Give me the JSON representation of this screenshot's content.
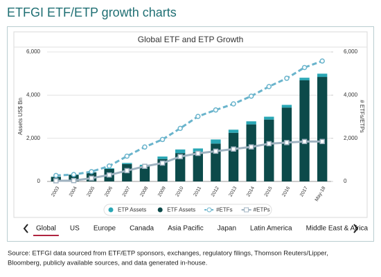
{
  "header": {
    "title": "ETFGI ETF/ETP growth charts"
  },
  "chart_data": {
    "type": "bar",
    "title": "Global ETF and ETP Growth",
    "y_label": "Assets US$ Bn",
    "y2_label": "# ETFs/ETPs",
    "categories": [
      "2003",
      "2004",
      "2005",
      "2006",
      "2007",
      "2008",
      "2009",
      "2010",
      "2011",
      "2012",
      "2013",
      "2014",
      "2015",
      "2016",
      "2017",
      "May-18"
    ],
    "series": [
      {
        "name": "ETP Assets",
        "type": "bar",
        "color": "#2aa7b5",
        "values": [
          6,
          9,
          9,
          32,
          50,
          57,
          117,
          168,
          173,
          190,
          144,
          142,
          133,
          124,
          117,
          150
        ]
      },
      {
        "name": "ETF Assets",
        "type": "bar",
        "color": "#0c4a4a",
        "values": [
          212,
          310,
          417,
          580,
          807,
          716,
          1037,
          1313,
          1355,
          1754,
          2254,
          2643,
          2866,
          3423,
          4687,
          4843
        ]
      },
      {
        "name": "#ETFs",
        "type": "line",
        "axis": "y2",
        "color": "#6ab4cc",
        "dashed": true,
        "marker": "circle",
        "values": [
          276,
          319,
          453,
          714,
          1171,
          1595,
          1944,
          2459,
          3012,
          3311,
          3594,
          3952,
          4396,
          4779,
          5278,
          5580
        ]
      },
      {
        "name": "#ETPs",
        "type": "line",
        "axis": "y2",
        "color": "#9fb2c0",
        "dashed": false,
        "marker": "square",
        "values": [
          30,
          40,
          150,
          300,
          500,
          700,
          850,
          1150,
          1300,
          1400,
          1500,
          1600,
          1750,
          1800,
          1850,
          1850
        ]
      }
    ],
    "ylim": [
      0,
      6000
    ],
    "yticks": [
      0,
      {
        "value": 2000,
        "label": "2,000"
      },
      {
        "value": 4000,
        "label": "4,000"
      },
      {
        "value": 6000,
        "label": "6,000"
      }
    ],
    "y2lim": [
      0,
      6000
    ],
    "y2ticks": [
      0,
      {
        "value": 2000,
        "label": "2,000"
      },
      {
        "value": 4000,
        "label": "4,000"
      },
      {
        "value": 6000,
        "label": "6,000"
      }
    ],
    "grid": true,
    "legend": "bottom"
  },
  "tabs": [
    "Global",
    "US",
    "Europe",
    "Canada",
    "Asia Pacific",
    "Japan",
    "Latin America",
    "Middle East & Africa"
  ],
  "active_tab": 0,
  "source": [
    "Source: ETFGI data sourced from ETF/ETP sponsors, exchanges, regulatory filings, Thomson Reuters/Lipper,",
    "Bloomberg, publicly available sources, and data generated in-house."
  ]
}
